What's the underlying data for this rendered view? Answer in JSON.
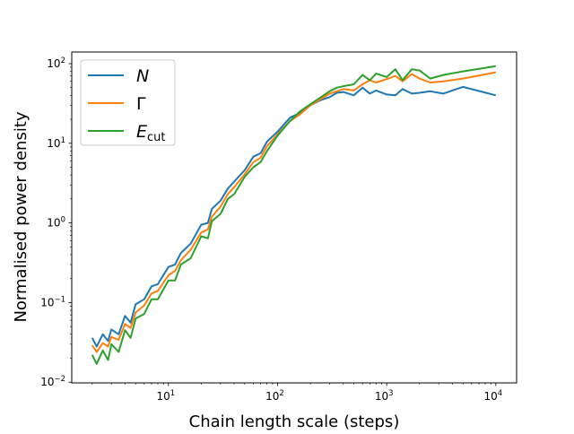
{
  "chart_data": {
    "type": "line",
    "title": "",
    "xlabel": "Chain length scale (steps)",
    "ylabel": "Normalised power density",
    "xscale": "log",
    "yscale": "log",
    "xlim": [
      1.3,
      15500
    ],
    "ylim": [
      0.0098,
      140
    ],
    "grid": false,
    "legend_position": "top-left",
    "x_tick_labels": [
      {
        "value": 10,
        "base": "10",
        "exp": "1"
      },
      {
        "value": 100,
        "base": "10",
        "exp": "2"
      },
      {
        "value": 1000,
        "base": "10",
        "exp": "3"
      },
      {
        "value": 10000,
        "base": "10",
        "exp": "4"
      }
    ],
    "y_tick_labels": [
      {
        "value": 0.01,
        "base": "10",
        "exp": "−2"
      },
      {
        "value": 0.1,
        "base": "10",
        "exp": "−1"
      },
      {
        "value": 1,
        "base": "10",
        "exp": "0"
      },
      {
        "value": 10,
        "base": "10",
        "exp": "1"
      },
      {
        "value": 100,
        "base": "10",
        "exp": "2"
      }
    ],
    "x": [
      2,
      2.2,
      2.5,
      2.8,
      3,
      3.5,
      4,
      4.5,
      5,
      6,
      7,
      8,
      10,
      11.5,
      13,
      16,
      20,
      23,
      25,
      30,
      35,
      40,
      50,
      60,
      70,
      80,
      100,
      130,
      160,
      200,
      250,
      300,
      350,
      400,
      500,
      600,
      700,
      800,
      1000,
      1200,
      1400,
      1700,
      2000,
      2500,
      3300,
      5000,
      10000
    ],
    "series": [
      {
        "name": "N",
        "name_main": "N",
        "name_sub": "",
        "color": "#1f77b4",
        "values": [
          0.036,
          0.028,
          0.04,
          0.033,
          0.046,
          0.04,
          0.068,
          0.056,
          0.095,
          0.11,
          0.16,
          0.17,
          0.28,
          0.3,
          0.42,
          0.55,
          0.95,
          1.0,
          1.5,
          1.9,
          2.7,
          3.3,
          4.6,
          6.8,
          7.5,
          10.5,
          14,
          21,
          24,
          30,
          35,
          38,
          43,
          44,
          40,
          50,
          42,
          46,
          41,
          40,
          48,
          42,
          43,
          45,
          42,
          51,
          40
        ]
      },
      {
        "name": "Γ",
        "name_main": "Γ",
        "name_sub": "",
        "color": "#ff7f0e",
        "values": [
          0.029,
          0.024,
          0.031,
          0.028,
          0.037,
          0.034,
          0.054,
          0.048,
          0.075,
          0.092,
          0.13,
          0.14,
          0.22,
          0.25,
          0.34,
          0.46,
          0.76,
          0.83,
          1.2,
          1.6,
          2.3,
          2.8,
          4.1,
          5.8,
          6.6,
          9.2,
          13,
          19,
          23,
          30,
          36,
          42,
          45,
          48,
          46,
          55,
          62,
          58,
          64,
          70,
          60,
          74,
          65,
          58,
          60,
          65,
          78
        ]
      },
      {
        "name": "E_cut",
        "name_main": "E",
        "name_sub": "cut",
        "color": "#2ca02c",
        "values": [
          0.022,
          0.017,
          0.025,
          0.019,
          0.03,
          0.024,
          0.045,
          0.036,
          0.063,
          0.072,
          0.11,
          0.11,
          0.19,
          0.19,
          0.3,
          0.36,
          0.68,
          0.64,
          1.05,
          1.3,
          2.0,
          2.3,
          3.8,
          5.0,
          5.8,
          8.0,
          12.5,
          19,
          25,
          31,
          38,
          45,
          50,
          52,
          55,
          72,
          62,
          75,
          68,
          85,
          62,
          85,
          82,
          65,
          72,
          80,
          93
        ]
      }
    ]
  }
}
